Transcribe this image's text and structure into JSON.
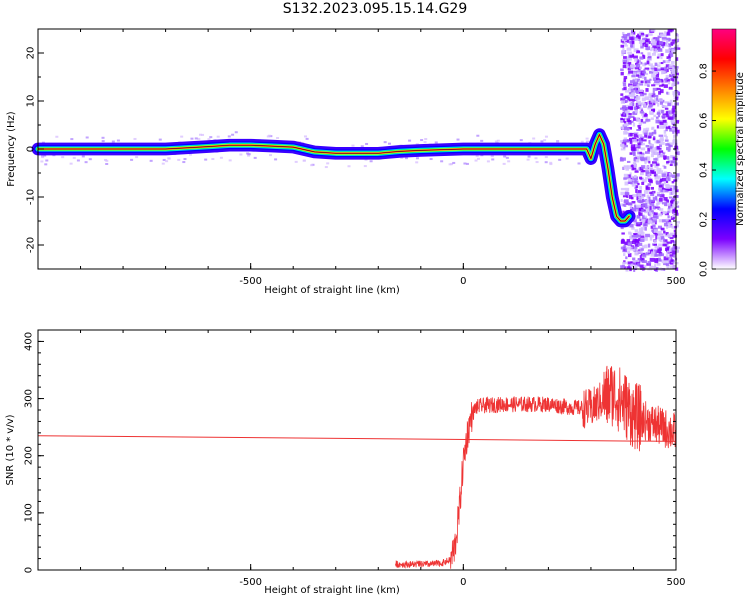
{
  "title": "S132.2023.095.15.14.G29",
  "chart_data": [
    {
      "type": "heatmap",
      "xlabel": "Height of straight line (km)",
      "ylabel": "Frequency (Hz)",
      "xlim": [
        -1000,
        500
      ],
      "ylim": [
        -25,
        25
      ],
      "xticks": [
        -500,
        0,
        500
      ],
      "yticks": [
        -20,
        -10,
        0,
        10,
        20
      ],
      "colorbar": {
        "label": "Normalized spectral amplitude",
        "range": [
          0,
          1
        ],
        "ticks": [
          "0.0",
          "0.2",
          "0.4",
          "0.6",
          "0.8"
        ],
        "colors": [
          "#ffffff",
          "#7b00ff",
          "#0000ff",
          "#00ffff",
          "#00ff00",
          "#ffff00",
          "#ff8000",
          "#ff0000",
          "#ff0080"
        ]
      },
      "ridge": {
        "x": [
          -1000,
          -900,
          -800,
          -700,
          -600,
          -550,
          -500,
          -450,
          -400,
          -350,
          -300,
          -250,
          -200,
          -150,
          -100,
          0,
          100,
          200,
          290,
          300,
          310,
          320,
          330,
          340,
          350,
          360,
          370,
          380,
          390
        ],
        "y": [
          0,
          0,
          0,
          0,
          0.5,
          0.8,
          0.8,
          0.6,
          0.4,
          -0.6,
          -0.9,
          -0.9,
          -0.9,
          -0.5,
          -0.3,
          0,
          0,
          0,
          0,
          -2,
          1,
          3,
          1,
          -4,
          -10,
          -14,
          -15,
          -15,
          -14
        ]
      }
    },
    {
      "type": "line",
      "xlabel": "Height of straight line (km)",
      "ylabel": "SNR (10 * v/v)",
      "xlim": [
        -1000,
        500
      ],
      "ylim": [
        0,
        420
      ],
      "xticks": [
        -500,
        0,
        500
      ],
      "yticks": [
        0,
        100,
        200,
        300,
        400
      ],
      "color": "#ee3333",
      "trend": {
        "x": [
          -1000,
          500
        ],
        "y": [
          235,
          225
        ]
      },
      "series_envelope": {
        "x": [
          -160,
          -120,
          -80,
          -50,
          -30,
          -20,
          -10,
          0,
          10,
          20,
          30,
          50,
          100,
          150,
          200,
          250,
          300,
          330,
          350,
          380,
          400,
          450,
          500
        ],
        "y": [
          10,
          10,
          10,
          12,
          18,
          40,
          100,
          190,
          240,
          270,
          285,
          288,
          290,
          290,
          290,
          285,
          282,
          300,
          310,
          290,
          270,
          255,
          240
        ]
      }
    }
  ]
}
